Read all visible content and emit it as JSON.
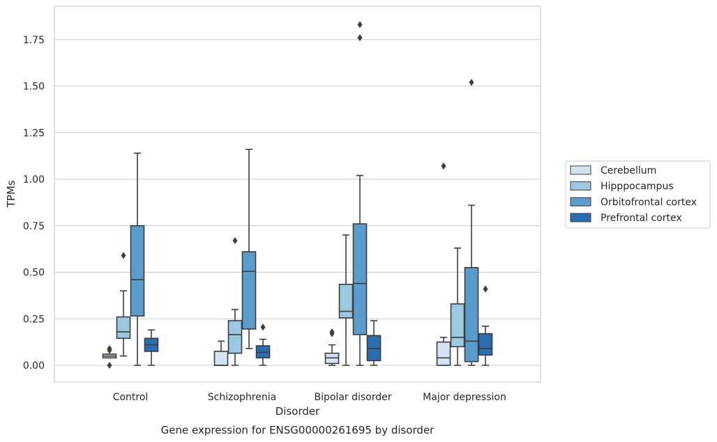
{
  "chart_data": {
    "type": "boxplot",
    "title": "Gene expression for ENSG00000261695 by disorder",
    "xlabel": "Disorder",
    "ylabel": "TPMs",
    "ylim": [
      -0.09,
      1.93
    ],
    "yticks": [
      "0.00",
      "0.25",
      "0.50",
      "0.75",
      "1.00",
      "1.25",
      "1.50",
      "1.75"
    ],
    "grid": true,
    "legend_position": "right",
    "categories": [
      "Control",
      "Schizophrenia",
      "Bipolar disorder",
      "Major depression"
    ],
    "series": [
      {
        "name": "Cerebellum",
        "color": "#d3e3f3",
        "boxes": [
          {
            "whislo": 0.04,
            "q1": 0.04,
            "med": 0.05,
            "q3": 0.06,
            "whishi": 0.06,
            "fliers": [
              0.0,
              0.08,
              0.09
            ]
          },
          {
            "whislo": 0.0,
            "q1": 0.0,
            "med": 0.0,
            "q3": 0.075,
            "whishi": 0.13,
            "fliers": []
          },
          {
            "whislo": 0.0,
            "q1": 0.01,
            "med": 0.04,
            "q3": 0.065,
            "whishi": 0.11,
            "fliers": [
              0.17,
              0.18
            ]
          },
          {
            "whislo": 0.0,
            "q1": 0.0,
            "med": 0.04,
            "q3": 0.125,
            "whishi": 0.15,
            "fliers": [
              1.07
            ]
          }
        ]
      },
      {
        "name": "Hipppocampus",
        "color": "#9ac8e0",
        "boxes": [
          {
            "whislo": 0.05,
            "q1": 0.145,
            "med": 0.18,
            "q3": 0.26,
            "whishi": 0.4,
            "fliers": [
              0.59
            ]
          },
          {
            "whislo": 0.0,
            "q1": 0.065,
            "med": 0.165,
            "q3": 0.24,
            "whishi": 0.3,
            "fliers": [
              0.67
            ]
          },
          {
            "whislo": 0.0,
            "q1": 0.255,
            "med": 0.29,
            "q3": 0.435,
            "whishi": 0.7,
            "fliers": []
          },
          {
            "whislo": 0.0,
            "q1": 0.1,
            "med": 0.15,
            "q3": 0.33,
            "whishi": 0.63,
            "fliers": []
          }
        ]
      },
      {
        "name": "Orbitofrontal cortex",
        "color": "#5a9ccb",
        "boxes": [
          {
            "whislo": 0.0,
            "q1": 0.265,
            "med": 0.46,
            "q3": 0.75,
            "whishi": 1.14,
            "fliers": []
          },
          {
            "whislo": 0.09,
            "q1": 0.195,
            "med": 0.505,
            "q3": 0.61,
            "whishi": 1.16,
            "fliers": []
          },
          {
            "whislo": 0.0,
            "q1": 0.165,
            "med": 0.44,
            "q3": 0.76,
            "whishi": 1.02,
            "fliers": [
              1.76,
              1.83
            ]
          },
          {
            "whislo": 0.0,
            "q1": 0.02,
            "med": 0.13,
            "q3": 0.525,
            "whishi": 0.86,
            "fliers": [
              1.52
            ]
          }
        ]
      },
      {
        "name": "Prefrontal cortex",
        "color": "#2a6db0",
        "boxes": [
          {
            "whislo": 0.0,
            "q1": 0.075,
            "med": 0.11,
            "q3": 0.145,
            "whishi": 0.19,
            "fliers": []
          },
          {
            "whislo": 0.0,
            "q1": 0.04,
            "med": 0.07,
            "q3": 0.105,
            "whishi": 0.14,
            "fliers": [
              0.205
            ]
          },
          {
            "whislo": 0.0,
            "q1": 0.025,
            "med": 0.09,
            "q3": 0.16,
            "whishi": 0.24,
            "fliers": []
          },
          {
            "whislo": 0.0,
            "q1": 0.055,
            "med": 0.09,
            "q3": 0.17,
            "whishi": 0.21,
            "fliers": [
              0.41
            ]
          }
        ]
      }
    ]
  }
}
